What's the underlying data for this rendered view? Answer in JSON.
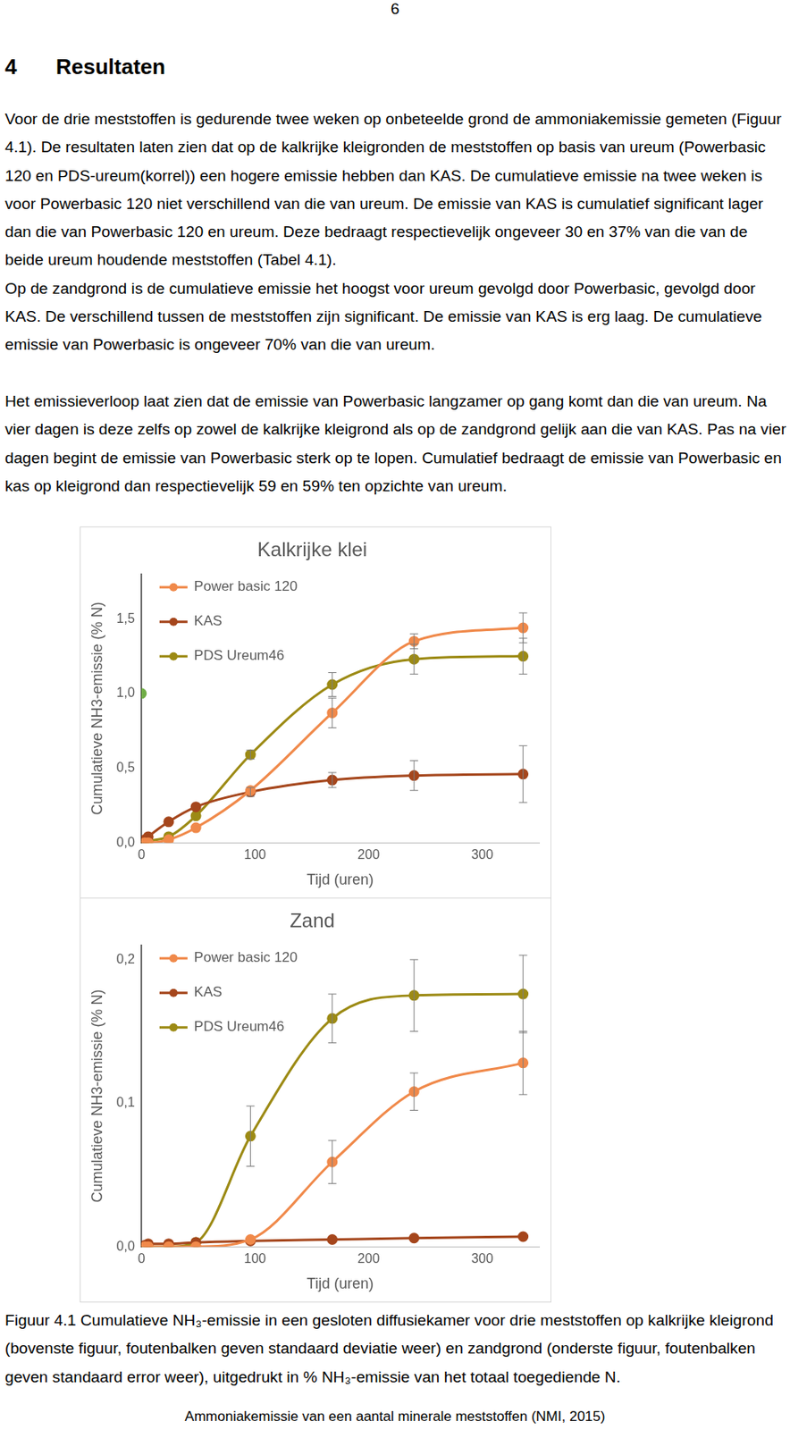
{
  "page_number": "6",
  "heading": {
    "number": "4",
    "title": "Resultaten"
  },
  "sections": [
    [
      "Voor de drie meststoffen is gedurende twee weken op onbeteelde grond de ammoniakemissie gemeten (Figuur 4.1). De resultaten laten zien dat op de kalkrijke kleigronden de meststoffen op basis van ureum (Powerbasic 120 en PDS-ureum(korrel)) een hogere emissie hebben dan KAS. De cumulatieve emissie na twee weken is voor Powerbasic 120 niet verschillend van die van ureum. De emissie van KAS is cumulatief significant lager dan die van Powerbasic 120 en ureum. Deze bedraagt respectievelijk ongeveer 30 en 37% van die van de beide ureum houdende meststoffen (Tabel 4.1).",
      "Op de zandgrond is de cumulatieve emissie het hoogst voor ureum gevolgd door Powerbasic, gevolgd door KAS. De verschillend tussen de meststoffen zijn significant. De emissie van KAS is erg laag. De cumulatieve emissie van Powerbasic is ongeveer 70% van die van ureum."
    ],
    [
      "Het emissieverloop laat zien dat de emissie van Powerbasic langzamer op gang komt dan die van ureum. Na vier dagen is deze zelfs op zowel de kalkrijke kleigrond als op de zandgrond gelijk aan die van KAS. Pas na vier dagen begint de emissie van Powerbasic sterk op te lopen. Cumulatief bedraagt de emissie van Powerbasic en kas op kleigrond dan respectievelijk 59 en 59% ten opzichte van ureum."
    ]
  ],
  "chart_data": [
    {
      "type": "line",
      "title": "Kalkrijke klei",
      "x_label": "Tijd (uren)",
      "y_label": "Cumulatieve NH3-emissie (% N)",
      "x": [
        3,
        6,
        24,
        48,
        96,
        168,
        240,
        336
      ],
      "xlim": [
        0,
        350
      ],
      "xticks": [
        0,
        100,
        200,
        300
      ],
      "ylim": [
        0,
        1.8
      ],
      "yticks": [
        {
          "value": 0,
          "label": "0,0"
        },
        {
          "value": 0.5,
          "label": "0,5"
        },
        {
          "value": 1.0,
          "label": "1,0"
        },
        {
          "value": 1.5,
          "label": "1,5"
        }
      ],
      "grid": false,
      "legend": "upper left",
      "series": [
        {
          "name": "Power basic 120",
          "color": "#f0894a",
          "marker": "circle",
          "line_style": "solid",
          "values": [
            0.0,
            0.0,
            0.02,
            0.1,
            0.35,
            0.87,
            1.35,
            1.44
          ],
          "errors": [
            null,
            null,
            null,
            null,
            null,
            0.1,
            0.05,
            0.1
          ]
        },
        {
          "name": "KAS",
          "color": "#a5461c",
          "marker": "circle",
          "line_style": "solid",
          "values": [
            0.02,
            0.04,
            0.14,
            0.24,
            0.34,
            0.42,
            0.45,
            0.46
          ],
          "errors": [
            null,
            null,
            null,
            null,
            0.03,
            0.05,
            0.1,
            0.19
          ]
        },
        {
          "name": "PDS Ureum46",
          "color": "#9c8a14",
          "marker": "circle",
          "line_style": "solid",
          "values": [
            0.0,
            0.01,
            0.04,
            0.18,
            0.59,
            1.06,
            1.23,
            1.25
          ],
          "errors": [
            null,
            null,
            null,
            null,
            0.03,
            0.08,
            0.1,
            0.12
          ]
        },
        {
          "color": "#70ad47",
          "marker": "circle",
          "line_style": "none",
          "x": [
            0
          ],
          "values": [
            1.0
          ]
        }
      ]
    },
    {
      "type": "line",
      "title": "Zand",
      "x_label": "Tijd (uren)",
      "y_label": "Cumulatieve NH3-emissie (% N)",
      "x": [
        3,
        6,
        24,
        48,
        96,
        168,
        240,
        336
      ],
      "xlim": [
        0,
        350
      ],
      "xticks": [
        0,
        100,
        200,
        300
      ],
      "ylim": [
        0,
        0.21
      ],
      "yticks": [
        {
          "value": 0,
          "label": "0,0"
        },
        {
          "value": 0.1,
          "label": "0,1"
        },
        {
          "value": 0.2,
          "label": "0,2"
        }
      ],
      "grid": false,
      "legend": "upper left",
      "series": [
        {
          "name": "Power basic 120",
          "color": "#f0894a",
          "marker": "circle",
          "line_style": "solid",
          "values": [
            0.0,
            0.0,
            0.0,
            0.0,
            0.005,
            0.059,
            0.108,
            0.128
          ],
          "errors": [
            null,
            null,
            null,
            null,
            null,
            0.015,
            0.013,
            0.022
          ]
        },
        {
          "name": "KAS",
          "color": "#a5461c",
          "marker": "circle",
          "line_style": "solid",
          "values": [
            0.001,
            0.002,
            0.002,
            0.003,
            0.004,
            0.005,
            0.006,
            0.007
          ],
          "errors": [
            null,
            null,
            null,
            null,
            null,
            null,
            null,
            null
          ]
        },
        {
          "name": "PDS Ureum46",
          "color": "#9c8a14",
          "marker": "circle",
          "line_style": "solid",
          "values": [
            0.0,
            0.0,
            0.0,
            0.003,
            0.077,
            0.159,
            0.175,
            0.176
          ],
          "errors": [
            null,
            null,
            null,
            null,
            0.021,
            0.017,
            0.025,
            0.027
          ]
        }
      ]
    }
  ],
  "caption": "Figuur 4.1 Cumulatieve NH₃-emissie in een gesloten diffusiekamer voor drie meststoffen op kalkrijke kleigrond (bovenste figuur, foutenbalken geven standaard deviatie weer) en zandgrond (onderste figuur, foutenbalken geven standaard error weer), uitgedrukt in % NH₃-emissie van het totaal toegediende N.",
  "footer": "Ammoniakemissie van een aantal minerale meststoffen (NMI, 2015)"
}
